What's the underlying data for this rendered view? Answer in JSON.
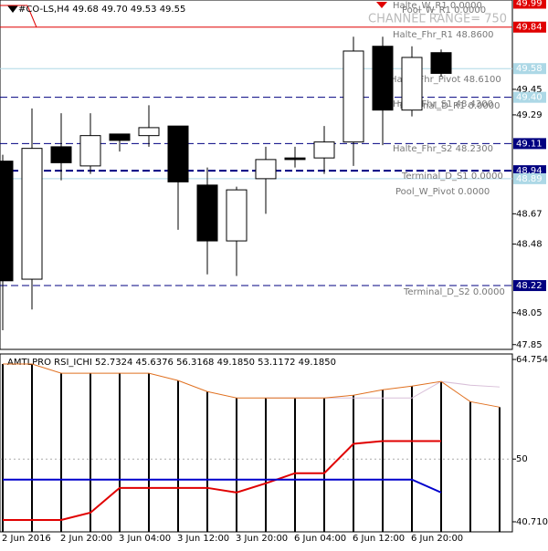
{
  "chart_data": [
    {
      "type": "candlestick",
      "title": "#CO-LS,H4  49.68 49.70 49.53 49.55",
      "categories": [
        "2 Jun 2016",
        null,
        "2 Jun 20:00",
        null,
        "3 Jun 04:00",
        null,
        "3 Jun 12:00",
        null,
        "3 Jun 20:00",
        null,
        "6 Jun 04:00",
        null,
        "6 Jun 12:00",
        null,
        "6 Jun 20:00",
        null
      ],
      "open": [
        49.0,
        48.26,
        49.09,
        48.97,
        49.17,
        49.16,
        49.22,
        48.85,
        48.5,
        48.89,
        49.02,
        49.02,
        49.12,
        49.72,
        49.32,
        49.68
      ],
      "high": [
        49.04,
        49.33,
        49.3,
        49.3,
        49.17,
        49.35,
        49.22,
        48.96,
        48.84,
        49.09,
        49.09,
        49.22,
        49.78,
        49.78,
        49.72,
        49.7
      ],
      "low": [
        47.94,
        48.07,
        48.88,
        48.92,
        49.06,
        49.09,
        48.57,
        48.29,
        48.28,
        48.67,
        48.96,
        48.92,
        48.97,
        49.1,
        49.28,
        49.53
      ],
      "close": [
        48.25,
        49.08,
        48.99,
        49.16,
        49.13,
        49.21,
        48.87,
        48.5,
        48.82,
        49.01,
        49.01,
        49.12,
        49.69,
        49.32,
        49.65,
        49.55
      ],
      "ylim": [
        47.82,
        50.01
      ],
      "yticks": [
        49.45,
        49.29,
        48.67,
        48.48,
        48.05,
        47.85
      ],
      "levels": [
        {
          "value": 49.99,
          "color": "#e00000",
          "line": "none"
        },
        {
          "value": 49.84,
          "color": "#e00000",
          "line": "solid"
        },
        {
          "value": 49.58,
          "color": "#add8e6",
          "line": "solid"
        },
        {
          "value": 49.4,
          "label": "49.40",
          "color": "#add8e6",
          "line": "dashed-navy"
        },
        {
          "value": 49.11,
          "color": "#000080",
          "line": "dashed"
        },
        {
          "value": 48.94,
          "color": "#000080",
          "line": "thick-dashed"
        },
        {
          "value": 48.89,
          "color": "#add8e6",
          "line": "solid"
        },
        {
          "value": 48.22,
          "color": "#000080",
          "line": "dashed"
        }
      ],
      "annotations": [
        "Halte_W_R1 0.0000",
        "Pool_W_R1 0.0000",
        "CHANNEL RANGE= 750",
        "Halte_Fhr_R1 48.8600",
        "Halte_Fhr_Pivot 48.6100",
        "Halte_Fhr_S1 48.4300",
        "Terminal_D_R1 0.0000",
        "Halte_Fhr_S2 48.2300",
        "Terminal_D_S1 0.0000",
        "Pool_W_Pivot 0.0000",
        "Terminal_D_S2 0.0000"
      ]
    },
    {
      "type": "line",
      "title": "AMTLPRO RSI_ICHI 52.7324 45.6376 56.3168 49.1850 53.1172 49.1850",
      "ylim": [
        39.22,
        65.57
      ],
      "yticks": [
        64.7549,
        50,
        40.7101
      ],
      "level_lines": [
        50
      ],
      "series": [
        {
          "style": "histogram",
          "color": "#000000",
          "values": [
            64.08,
            64.08,
            62.72,
            62.72,
            62.72,
            62.72,
            61.63,
            60.0,
            59.05,
            59.05,
            59.05,
            59.05,
            59.46,
            60.27,
            60.81,
            61.49,
            58.5,
            57.69
          ]
        },
        {
          "color": "#d8bfd8",
          "values": [
            null,
            null,
            null,
            null,
            null,
            null,
            null,
            null,
            null,
            59.05,
            59.05,
            59.05,
            59.05,
            59.05,
            59.05,
            61.49,
            60.95,
            60.68
          ]
        },
        {
          "color": "#e07020",
          "values": [
            64.08,
            64.08,
            62.72,
            62.72,
            62.72,
            62.72,
            61.63,
            60.0,
            59.05,
            59.05,
            59.05,
            59.05,
            59.46,
            60.27,
            60.81,
            61.49,
            58.5,
            57.69
          ]
        },
        {
          "color": "#e00000",
          "values": [
            40.98,
            40.98,
            40.98,
            42.06,
            45.73,
            45.73,
            45.73,
            45.73,
            45.05,
            46.41,
            47.91,
            47.91,
            52.26,
            52.66,
            52.66,
            52.66,
            null,
            null
          ]
        },
        {
          "color": "#0000cc",
          "values": [
            46.96,
            46.96,
            46.96,
            46.96,
            46.96,
            46.96,
            46.96,
            46.96,
            46.96,
            46.96,
            46.96,
            46.96,
            46.96,
            46.96,
            46.96,
            45.05,
            null,
            null
          ]
        }
      ]
    }
  ]
}
